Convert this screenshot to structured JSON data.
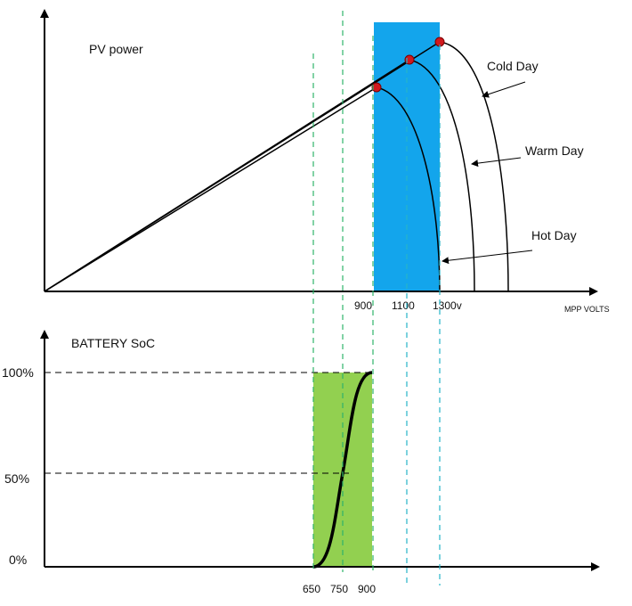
{
  "top_panel": {
    "title": "PV power",
    "curves": [
      {
        "label": "Cold Day"
      },
      {
        "label": "Warm Day"
      },
      {
        "label": "Hot Day"
      }
    ],
    "x_ticks": [
      "900",
      "1100",
      "1300v"
    ],
    "x_axis_label": "MPP VOLTS"
  },
  "bottom_panel": {
    "title": "BATTERY SoC",
    "y_ticks": [
      "100%",
      "50%",
      "0%"
    ],
    "x_ticks": [
      "650",
      "750",
      "900"
    ]
  }
}
